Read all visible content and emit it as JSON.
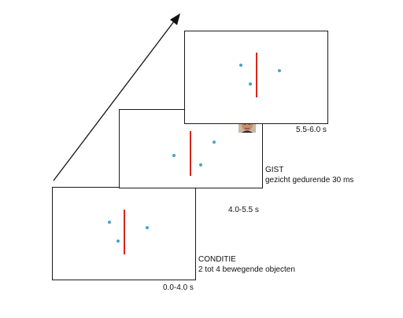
{
  "colors": {
    "dot": "#4a9fd0",
    "bar": "#d8261c",
    "border": "#1a1a1a",
    "arrow": "#111111"
  },
  "phases": [
    {
      "name": "conditie",
      "time_label": "0.0-4.0 s",
      "title": "CONDITIE",
      "description": "2 tot 4 bewegende objecten"
    },
    {
      "name": "gist",
      "time_label": "4.0-5.5 s",
      "title": "GIST",
      "description": "gezicht gedurende 30 ms"
    },
    {
      "name": "final",
      "time_label": "5.5-6.0 s"
    }
  ],
  "icons": {
    "face": "face-photo-icon",
    "arrow": "time-arrow-icon"
  }
}
